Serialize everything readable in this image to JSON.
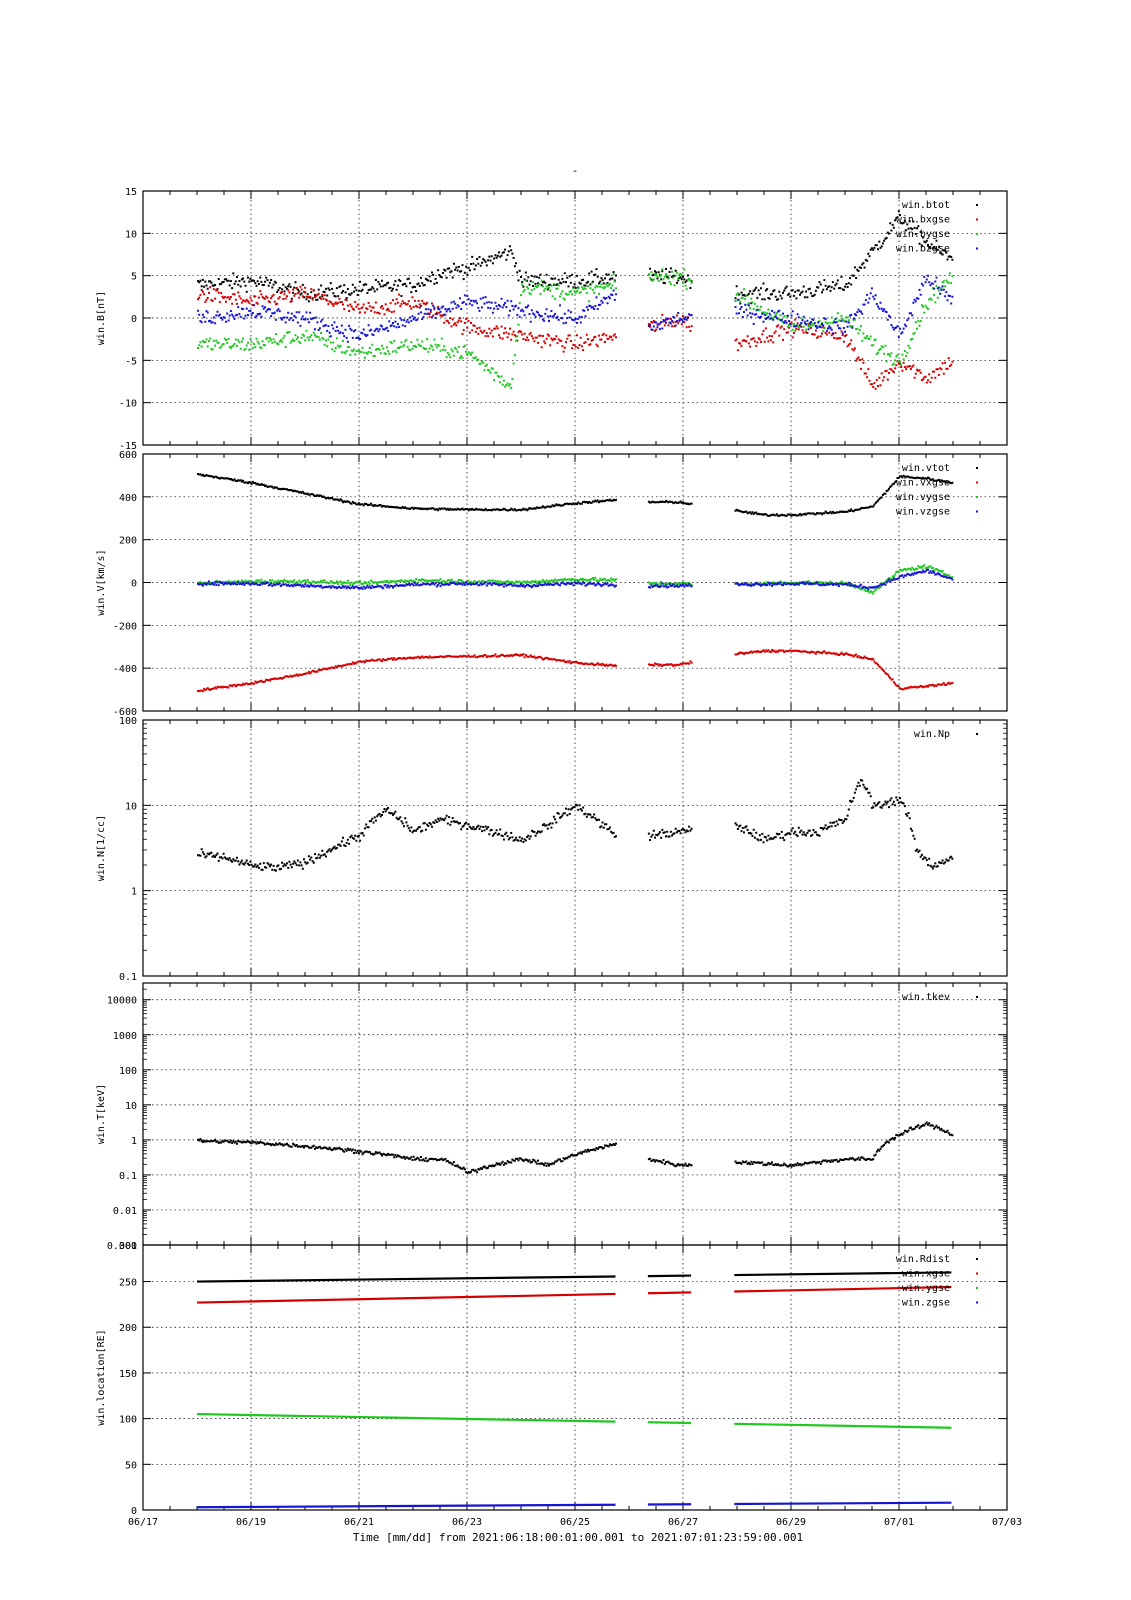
{
  "page_title": "-",
  "footer": {
    "xlabel": "Time [mm/dd]  from 2021:06:18:00:01:00.001  to  2021:07:01:23:59:00.001"
  },
  "x_axis": {
    "tick_labels": [
      "06/17",
      "06/19",
      "06/21",
      "06/23",
      "06/25",
      "06/27",
      "06/29",
      "07/01",
      "07/03"
    ],
    "range_days": [
      0,
      16
    ],
    "data_start_day": 1.0,
    "data_end_day": 14.97,
    "data_gaps": [
      [
        8.75,
        9.35
      ],
      [
        10.15,
        10.95
      ]
    ]
  },
  "colors": {
    "black": "#000000",
    "red": "#d40000",
    "green": "#1ec81e",
    "blue": "#1414d2"
  },
  "chart_data": [
    {
      "type": "scatter",
      "ylabel": "win.B[nT]",
      "ylim": [
        -15,
        15
      ],
      "yticks": [
        15,
        10,
        5,
        0,
        -5,
        -10,
        -15
      ],
      "ytick_labels": [
        "15",
        "10",
        "5",
        "0",
        "-5",
        "-10",
        "-15"
      ],
      "grid": true,
      "legend_position": "top-right",
      "series": [
        {
          "name": "win.btot",
          "color": "#000000",
          "x": [
            1,
            2,
            3,
            4,
            5,
            5.5,
            6,
            6.8,
            7,
            8,
            8.75,
            9.35,
            9.9,
            10.95,
            12,
            13,
            13.5,
            14,
            14.5,
            14.97
          ],
          "y": [
            4,
            4.5,
            3,
            3.5,
            4,
            5.5,
            6,
            8,
            4.5,
            4.5,
            5,
            5,
            5,
            3,
            3,
            4,
            8,
            12,
            9,
            7
          ]
        },
        {
          "name": "win.bxgse",
          "color": "#d40000",
          "x": [
            1,
            2,
            3,
            4,
            5,
            6,
            7,
            8,
            8.75,
            9.35,
            9.9,
            10.95,
            12,
            13,
            13.5,
            14,
            14.5,
            14.97
          ],
          "y": [
            3,
            2,
            3,
            1,
            2,
            -1,
            -2,
            -3,
            -2,
            -1,
            0,
            -3,
            -1,
            -2,
            -8,
            -5,
            -7,
            -5
          ]
        },
        {
          "name": "win.bygse",
          "color": "#1ec81e",
          "x": [
            1,
            2,
            3,
            4,
            5,
            6,
            6.8,
            7,
            8,
            8.75,
            9.35,
            9.9,
            10.95,
            12,
            13,
            13.5,
            14,
            14.5,
            14.97
          ],
          "y": [
            -3,
            -3,
            -2,
            -4,
            -3,
            -4,
            -8,
            4,
            3,
            4,
            5,
            5,
            3,
            -1,
            0,
            -3,
            -5,
            2,
            5
          ]
        },
        {
          "name": "win.bzgse",
          "color": "#1414d2",
          "x": [
            1,
            2,
            3,
            4,
            5,
            6,
            7,
            8,
            8.75,
            9.35,
            9.9,
            10.95,
            12,
            13,
            13.5,
            14,
            14.5,
            14.97
          ],
          "y": [
            0,
            1,
            0,
            -2,
            0,
            2,
            1,
            0,
            3,
            -1,
            0,
            1,
            0,
            -1,
            3,
            -2,
            5,
            2
          ]
        }
      ]
    },
    {
      "type": "scatter",
      "ylabel": "win.V[km/s]",
      "ylim": [
        -600,
        600
      ],
      "yticks": [
        600,
        400,
        200,
        0,
        -200,
        -400,
        -600
      ],
      "ytick_labels": [
        "600",
        "400",
        "200",
        "0",
        "-200",
        "-400",
        "-600"
      ],
      "grid": true,
      "legend_position": "top-right",
      "series": [
        {
          "name": "win.vtot",
          "color": "#000000",
          "x": [
            1,
            2,
            3,
            4,
            5,
            6,
            7,
            8,
            8.75,
            9.35,
            9.9,
            10.95,
            11.5,
            12,
            13,
            13.5,
            14,
            14.5,
            14.97
          ],
          "y": [
            510,
            470,
            420,
            370,
            350,
            345,
            345,
            375,
            390,
            380,
            380,
            340,
            320,
            320,
            335,
            360,
            500,
            490,
            470
          ]
        },
        {
          "name": "win.vxgse",
          "color": "#d40000",
          "x": [
            1,
            2,
            3,
            4,
            5,
            6,
            7,
            8,
            8.75,
            9.35,
            9.9,
            10.95,
            11.5,
            12,
            13,
            13.5,
            14,
            14.5,
            14.97
          ],
          "y": [
            -500,
            -465,
            -420,
            -365,
            -345,
            -340,
            -335,
            -370,
            -385,
            -380,
            -380,
            -330,
            -315,
            -315,
            -330,
            -355,
            -490,
            -480,
            -465
          ]
        },
        {
          "name": "win.vygse",
          "color": "#1ec81e",
          "x": [
            1,
            2,
            3,
            4,
            5,
            6,
            7,
            8,
            8.75,
            9.35,
            9.9,
            10.95,
            12,
            13,
            13.5,
            14,
            14.5,
            14.97
          ],
          "y": [
            0,
            10,
            10,
            0,
            15,
            10,
            5,
            20,
            15,
            0,
            0,
            -5,
            5,
            0,
            -40,
            60,
            80,
            30
          ]
        },
        {
          "name": "win.vzgse",
          "color": "#1414d2",
          "x": [
            1,
            2,
            3,
            4,
            5,
            6,
            7,
            8,
            8.75,
            9.35,
            9.9,
            10.95,
            12,
            13,
            13.5,
            14,
            14.5,
            14.97
          ],
          "y": [
            0,
            0,
            -10,
            -20,
            -5,
            0,
            -10,
            0,
            -5,
            -10,
            -10,
            -5,
            0,
            -5,
            -20,
            30,
            60,
            20
          ]
        }
      ]
    },
    {
      "type": "scatter",
      "ylabel": "win.N[1/cc]",
      "yscale": "log",
      "ylim": [
        0.1,
        100
      ],
      "yticks": [
        100,
        10,
        1,
        0.1
      ],
      "ytick_labels": [
        "100",
        "10",
        "1",
        "0.1"
      ],
      "grid": true,
      "legend_position": "top-right",
      "series": [
        {
          "name": "win.Np",
          "color": "#000000",
          "x": [
            1,
            1.5,
            2,
            2.5,
            3,
            3.5,
            4,
            4.5,
            5,
            5.5,
            6,
            6.5,
            7,
            7.5,
            8,
            8.5,
            8.75,
            9.35,
            9.9,
            10.95,
            11.5,
            12,
            12.5,
            13,
            13.3,
            13.5,
            14,
            14.3,
            14.6,
            14.97
          ],
          "y": [
            2.7,
            2.5,
            2,
            1.9,
            2.2,
            3.2,
            4.5,
            9,
            5,
            7,
            6,
            5,
            4,
            6,
            10,
            6,
            4.5,
            4.5,
            5,
            6,
            4,
            5,
            5,
            7,
            20,
            10,
            12,
            3,
            2,
            2.5
          ]
        }
      ]
    },
    {
      "type": "scatter",
      "ylabel": "win.T[keV]",
      "yscale": "log",
      "ylim": [
        0.001,
        30000
      ],
      "yticks": [
        10000,
        1000,
        100,
        10,
        1,
        0.1,
        0.01,
        0.001
      ],
      "ytick_labels": [
        "10000",
        "1000",
        "100",
        "10",
        "1",
        "0.1",
        "0.01",
        "0.001"
      ],
      "grid": true,
      "legend_position": "top-right",
      "series": [
        {
          "name": "win.tkev",
          "color": "#000000",
          "x": [
            1,
            2,
            3,
            4,
            5,
            5.5,
            6,
            7,
            7.5,
            8,
            8.75,
            9.35,
            9.9,
            10.95,
            12,
            13,
            13.5,
            14,
            14.5,
            14.97
          ],
          "y": [
            1,
            0.9,
            0.7,
            0.5,
            0.3,
            0.3,
            0.12,
            0.3,
            0.2,
            0.4,
            0.8,
            0.3,
            0.2,
            0.25,
            0.2,
            0.3,
            0.3,
            1.5,
            3,
            1.5
          ]
        }
      ]
    },
    {
      "type": "scatter",
      "ylabel": "win.location[RE]",
      "ylim": [
        0,
        290
      ],
      "yticks": [
        250,
        200,
        150,
        100,
        50,
        0
      ],
      "ytick_labels": [
        "250",
        "200",
        "150",
        "100",
        "50",
        "0"
      ],
      "corner_label": "300",
      "grid": true,
      "legend_position": "top-right",
      "series": [
        {
          "name": "win.Rdist",
          "color": "#000000",
          "x": [
            1,
            14.97
          ],
          "y": [
            250,
            260
          ]
        },
        {
          "name": "win.xgse",
          "color": "#d40000",
          "x": [
            1,
            14.97
          ],
          "y": [
            227,
            244
          ]
        },
        {
          "name": "win.ygse",
          "color": "#1ec81e",
          "x": [
            1,
            14.97
          ],
          "y": [
            105,
            90
          ]
        },
        {
          "name": "win.zgse",
          "color": "#1414d2",
          "x": [
            1,
            14.97
          ],
          "y": [
            3,
            8
          ]
        }
      ]
    }
  ]
}
